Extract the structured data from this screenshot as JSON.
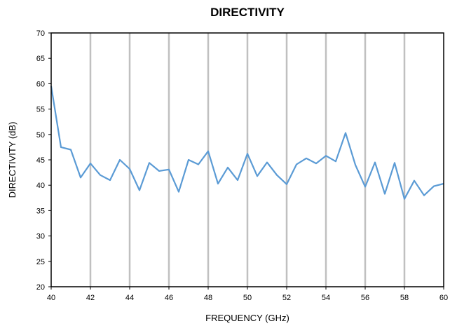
{
  "chart_data": {
    "type": "line",
    "title": "DIRECTIVITY",
    "xlabel": "FREQUENCY (GHz)",
    "ylabel": "DIRECTIVITY (dB)",
    "xlim": [
      40,
      60
    ],
    "ylim": [
      20,
      70
    ],
    "xticks": [
      40,
      42,
      44,
      46,
      48,
      50,
      52,
      54,
      56,
      58,
      60
    ],
    "yticks": [
      20,
      25,
      30,
      35,
      40,
      45,
      50,
      55,
      60,
      65,
      70
    ],
    "grid": "vertical",
    "legend": "none",
    "series": [
      {
        "color": "#5b9bd5",
        "x": [
          40,
          40.5,
          41,
          41.5,
          42,
          42.5,
          43,
          43.5,
          44,
          44.5,
          45,
          45.5,
          46,
          46.5,
          47,
          47.5,
          48,
          48.5,
          49,
          49.5,
          50,
          50.5,
          51,
          51.5,
          52,
          52.5,
          53,
          53.5,
          54,
          54.5,
          55,
          55.5,
          56,
          56.5,
          57,
          57.5,
          58,
          58.5,
          59,
          59.5,
          60
        ],
        "y": [
          59.5,
          47.5,
          47.0,
          41.5,
          44.3,
          42.0,
          41.0,
          45.0,
          43.2,
          39.0,
          44.4,
          42.8,
          43.1,
          38.7,
          45.0,
          44.1,
          46.7,
          40.3,
          43.5,
          41.0,
          46.2,
          41.8,
          44.5,
          42.0,
          40.2,
          44.1,
          45.3,
          44.3,
          45.8,
          44.7,
          50.3,
          44.0,
          39.7,
          44.5,
          38.3,
          44.4,
          37.3,
          40.9,
          38.0,
          39.8,
          40.3
        ]
      }
    ]
  }
}
